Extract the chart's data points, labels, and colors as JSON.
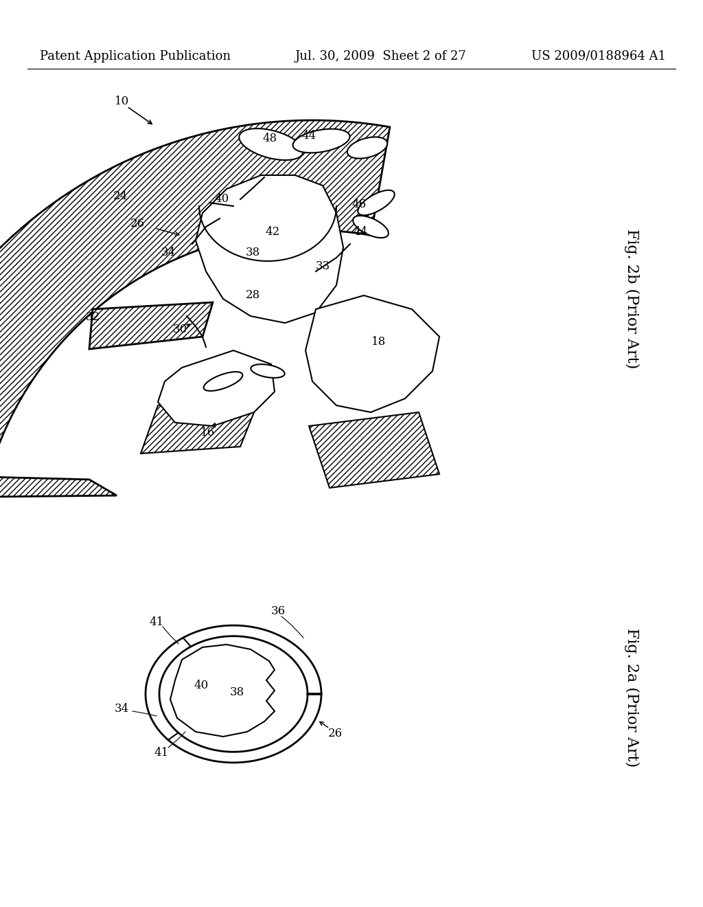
{
  "bg_color": "#ffffff",
  "header_left": "Patent Application Publication",
  "header_mid": "Jul. 30, 2009  Sheet 2 of 27",
  "header_right": "US 2009/0188964 A1",
  "fig2b_label": "Fig. 2b (Prior Art)",
  "fig2a_label": "Fig. 2a (Prior Art)",
  "label_fontsize": 16,
  "anno_fontsize": 12,
  "header_fontsize": 13
}
